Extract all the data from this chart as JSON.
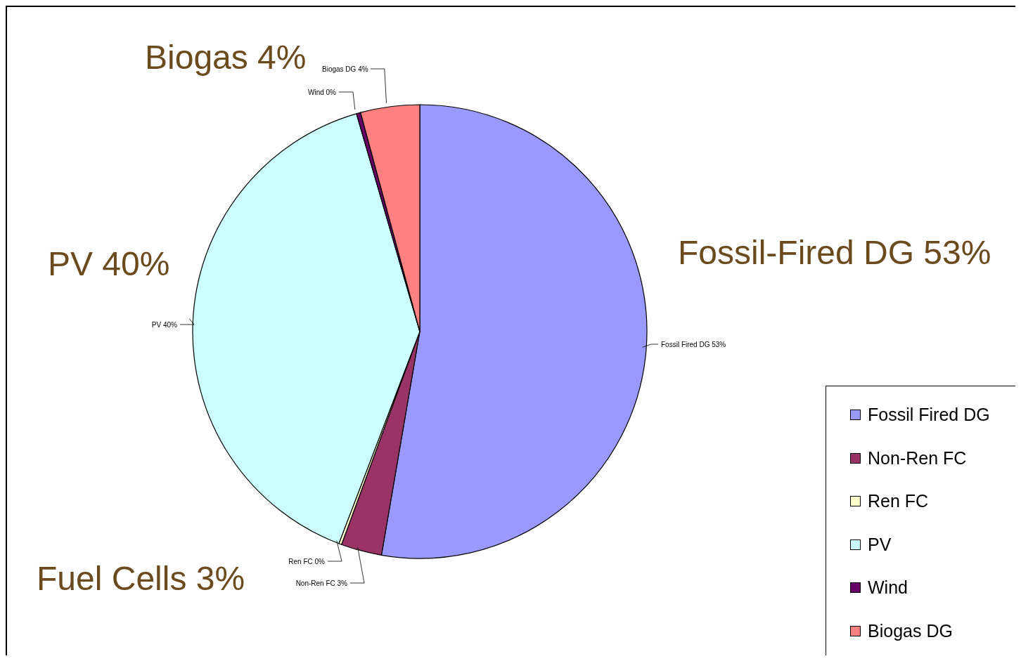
{
  "chart_data": {
    "type": "pie",
    "categories": [
      "Fossil Fired DG",
      "Non-Ren FC",
      "Ren FC",
      "PV",
      "Wind",
      "Biogas DG"
    ],
    "values": [
      52.7,
      2.9,
      0.2,
      39.7,
      0.3,
      4.2
    ],
    "colors": [
      "#9999ff",
      "#993366",
      "#ffffcc",
      "#ccffff",
      "#660066",
      "#ff8080"
    ],
    "value_labels": [
      "53%",
      "3%",
      "0%",
      "40%",
      "0%",
      "4%"
    ],
    "legend": "bottom right",
    "annotations": [
      "Biogas 4%",
      "PV 40%",
      "Fossil-Fired DG 53%",
      "Fuel Cells 3%"
    ]
  }
}
